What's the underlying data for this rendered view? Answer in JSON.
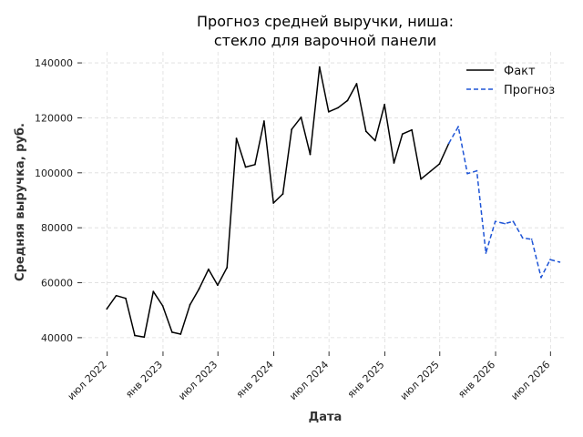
{
  "chart_data": {
    "type": "line",
    "title_lines": [
      "Прогноз средней выручки, ниша:",
      "стекло для варочной панели"
    ],
    "xlabel": "Дата",
    "ylabel": "Средняя выручка, руб.",
    "ylim": [
      35000,
      144000
    ],
    "xlim": [
      "2022-04-09",
      "2026-08-23"
    ],
    "y_ticks": [
      40000,
      60000,
      80000,
      100000,
      120000,
      140000
    ],
    "x_ticks": [
      {
        "date": "2022-07-01",
        "label": "июл 2022"
      },
      {
        "date": "2023-01-01",
        "label": "янв 2023"
      },
      {
        "date": "2023-07-01",
        "label": "июл 2023"
      },
      {
        "date": "2024-01-01",
        "label": "янв 2024"
      },
      {
        "date": "2024-07-01",
        "label": "июл 2024"
      },
      {
        "date": "2025-01-01",
        "label": "янв 2025"
      },
      {
        "date": "2025-07-01",
        "label": "июл 2025"
      },
      {
        "date": "2026-01-01",
        "label": "янв 2026"
      },
      {
        "date": "2026-07-01",
        "label": "июл 2026"
      }
    ],
    "grid": true,
    "legend_position": "top-right",
    "series": [
      {
        "name": "Факт",
        "color": "#000000",
        "style": "solid",
        "points": [
          [
            "2022-06-30",
            50500
          ],
          [
            "2022-07-31",
            55300
          ],
          [
            "2022-08-31",
            54300
          ],
          [
            "2022-09-30",
            40800
          ],
          [
            "2022-10-31",
            40200
          ],
          [
            "2022-11-30",
            56800
          ],
          [
            "2022-12-31",
            51600
          ],
          [
            "2023-01-31",
            42000
          ],
          [
            "2023-02-28",
            41300
          ],
          [
            "2023-03-31",
            52000
          ],
          [
            "2023-04-30",
            57800
          ],
          [
            "2023-05-31",
            64900
          ],
          [
            "2023-06-30",
            59100
          ],
          [
            "2023-07-31",
            65500
          ],
          [
            "2023-08-31",
            112500
          ],
          [
            "2023-09-30",
            102100
          ],
          [
            "2023-10-31",
            103000
          ],
          [
            "2023-11-30",
            118800
          ],
          [
            "2023-12-31",
            89000
          ],
          [
            "2024-01-31",
            92300
          ],
          [
            "2024-02-29",
            115800
          ],
          [
            "2024-03-31",
            120200
          ],
          [
            "2024-04-30",
            106700
          ],
          [
            "2024-05-31",
            138500
          ],
          [
            "2024-06-30",
            122200
          ],
          [
            "2024-07-31",
            123700
          ],
          [
            "2024-08-31",
            126300
          ],
          [
            "2024-09-30",
            132400
          ],
          [
            "2024-10-31",
            115100
          ],
          [
            "2024-11-30",
            111700
          ],
          [
            "2024-12-31",
            124800
          ],
          [
            "2025-01-31",
            103600
          ],
          [
            "2025-02-28",
            114100
          ],
          [
            "2025-03-31",
            115600
          ],
          [
            "2025-04-30",
            97700
          ],
          [
            "2025-05-31",
            100500
          ],
          [
            "2025-06-30",
            103200
          ],
          [
            "2025-07-31",
            110700
          ]
        ]
      },
      {
        "name": "Прогноз",
        "color": "#1f55d6",
        "style": "dashed",
        "points": [
          [
            "2025-07-31",
            110700
          ],
          [
            "2025-08-31",
            116800
          ],
          [
            "2025-09-30",
            99700
          ],
          [
            "2025-10-31",
            100700
          ],
          [
            "2025-11-30",
            70800
          ],
          [
            "2025-12-31",
            82300
          ],
          [
            "2026-01-31",
            81500
          ],
          [
            "2026-02-28",
            82300
          ],
          [
            "2026-03-31",
            76300
          ],
          [
            "2026-04-30",
            75800
          ],
          [
            "2026-05-31",
            61900
          ],
          [
            "2026-06-30",
            68400
          ],
          [
            "2026-07-31",
            67500
          ]
        ]
      }
    ]
  }
}
